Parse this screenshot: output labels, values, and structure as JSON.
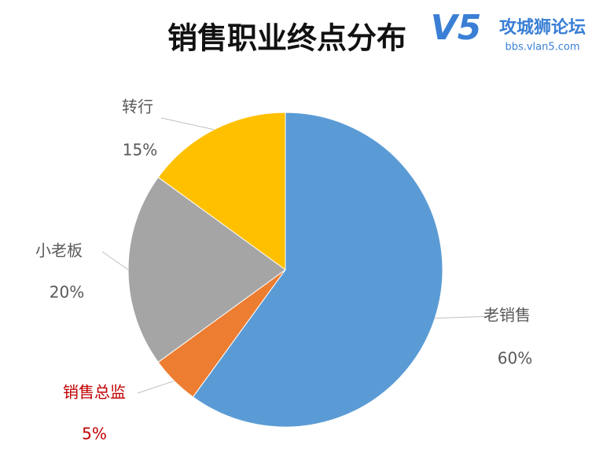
{
  "chart_data": {
    "type": "pie",
    "title": "销售职业终点分布",
    "categories": [
      "老销售",
      "销售总监",
      "小老板",
      "转行"
    ],
    "values": [
      60,
      5,
      20,
      15
    ],
    "value_labels": [
      "60%",
      "5%",
      "20%",
      "15%"
    ],
    "colors": [
      "#5b9bd5",
      "#ed7d31",
      "#a5a5a5",
      "#ffc000"
    ],
    "label_colors": [
      "#595959",
      "#c00000",
      "#595959",
      "#595959"
    ]
  },
  "watermark": {
    "logo": "V5",
    "title": "攻城狮论坛",
    "url": "bbs.vlan5.com"
  }
}
